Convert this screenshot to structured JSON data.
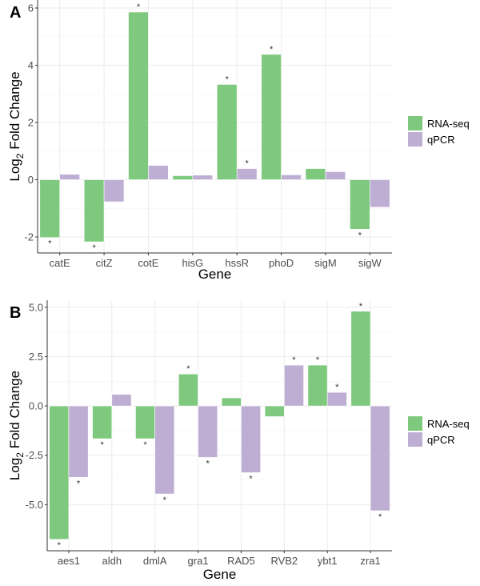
{
  "chart_data": [
    {
      "type": "bar",
      "panel_label": "A",
      "categories": [
        "catE",
        "citZ",
        "cotE",
        "hisG",
        "hssR",
        "phoD",
        "sigM",
        "sigW"
      ],
      "series": [
        {
          "name": "RNA-seq",
          "color": "#7fc97f",
          "values": [
            -2.02,
            -2.17,
            5.86,
            0.14,
            3.33,
            4.38,
            0.39,
            -1.73
          ],
          "significant": [
            true,
            true,
            true,
            false,
            true,
            true,
            false,
            true
          ]
        },
        {
          "name": "qPCR",
          "color": "#beaed4",
          "values": [
            0.19,
            -0.77,
            0.5,
            0.16,
            0.39,
            0.17,
            0.28,
            -0.96
          ],
          "significant": [
            false,
            false,
            false,
            false,
            true,
            false,
            false,
            false
          ]
        }
      ],
      "xlabel": "Gene",
      "ylabel": {
        "base": "Log",
        "sub": "2",
        "rest": " Fold Change"
      },
      "yticks": [
        -2,
        0,
        2,
        4,
        6
      ],
      "ytick_labels": [
        "-2",
        "0",
        "2",
        "4",
        "6"
      ],
      "ylim": [
        -2.56,
        6.28
      ],
      "grid": true,
      "legend": "right",
      "significance_marker": "*"
    },
    {
      "type": "bar",
      "panel_label": "B",
      "categories": [
        "aes1",
        "aldh",
        "dmlA",
        "gra1",
        "RAD5",
        "RVB2",
        "ybt1",
        "zra1"
      ],
      "series": [
        {
          "name": "RNA-seq",
          "color": "#7fc97f",
          "values": [
            -6.76,
            -1.66,
            -1.66,
            1.62,
            0.41,
            -0.54,
            2.07,
            4.8
          ],
          "significant": [
            true,
            true,
            true,
            true,
            false,
            false,
            true,
            true
          ]
        },
        {
          "name": "qPCR",
          "color": "#beaed4",
          "values": [
            -3.62,
            0.59,
            -4.46,
            -2.61,
            -3.38,
            2.07,
            0.69,
            -5.31
          ],
          "significant": [
            true,
            false,
            true,
            true,
            true,
            true,
            true,
            true
          ]
        }
      ],
      "xlabel": "Gene",
      "ylabel": {
        "base": "Log",
        "sub": "2",
        "rest": " Fold Change"
      },
      "yticks": [
        -5,
        -2.5,
        0,
        2.5,
        5
      ],
      "ytick_labels": [
        "-5.0",
        "-2.5",
        "0.0",
        "2.5",
        "5.0"
      ],
      "ylim": [
        -7.34,
        5.36
      ],
      "grid": true,
      "legend": "right",
      "significance_marker": "*"
    }
  ]
}
